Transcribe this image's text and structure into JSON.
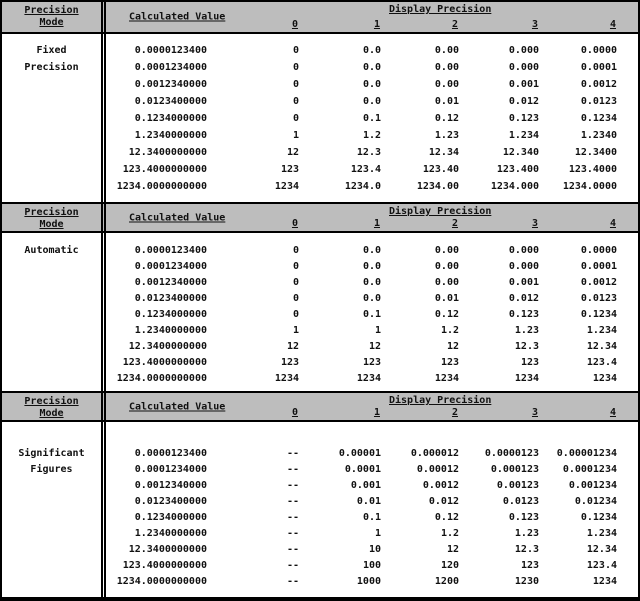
{
  "colors": {
    "header_bg": "#bdbdbd",
    "border": "#000000",
    "body_bg": "#ffffff",
    "text": "#111111"
  },
  "header": {
    "mode_col": {
      "line1": "Precision",
      "line2": "Mode"
    },
    "calc_col": "Calculated Value",
    "display_group": "Display Precision",
    "levels": [
      "0",
      "1",
      "2",
      "3",
      "4"
    ]
  },
  "sections": [
    {
      "id": "fixed-precision",
      "mode_line1": "Fixed",
      "mode_line2": "Precision",
      "rows": [
        [
          "0.0000123400",
          "0",
          "0.0",
          "0.00",
          "0.000",
          "0.0000"
        ],
        [
          "0.0001234000",
          "0",
          "0.0",
          "0.00",
          "0.000",
          "0.0001"
        ],
        [
          "0.0012340000",
          "0",
          "0.0",
          "0.00",
          "0.001",
          "0.0012"
        ],
        [
          "0.0123400000",
          "0",
          "0.0",
          "0.01",
          "0.012",
          "0.0123"
        ],
        [
          "0.1234000000",
          "0",
          "0.1",
          "0.12",
          "0.123",
          "0.1234"
        ],
        [
          "1.2340000000",
          "1",
          "1.2",
          "1.23",
          "1.234",
          "1.2340"
        ],
        [
          "12.3400000000",
          "12",
          "12.3",
          "12.34",
          "12.340",
          "12.3400"
        ],
        [
          "123.4000000000",
          "123",
          "123.4",
          "123.40",
          "123.400",
          "123.4000"
        ],
        [
          "1234.0000000000",
          "1234",
          "1234.0",
          "1234.00",
          "1234.000",
          "1234.0000"
        ]
      ]
    },
    {
      "id": "automatic",
      "mode_line1": "Automatic",
      "mode_line2": "",
      "rows": [
        [
          "0.0000123400",
          "0",
          "0.0",
          "0.00",
          "0.000",
          "0.0000"
        ],
        [
          "0.0001234000",
          "0",
          "0.0",
          "0.00",
          "0.000",
          "0.0001"
        ],
        [
          "0.0012340000",
          "0",
          "0.0",
          "0.00",
          "0.001",
          "0.0012"
        ],
        [
          "0.0123400000",
          "0",
          "0.0",
          "0.01",
          "0.012",
          "0.0123"
        ],
        [
          "0.1234000000",
          "0",
          "0.1",
          "0.12",
          "0.123",
          "0.1234"
        ],
        [
          "1.2340000000",
          "1",
          "1",
          "1.2",
          "1.23",
          "1.234"
        ],
        [
          "12.3400000000",
          "12",
          "12",
          "12",
          "12.3",
          "12.34"
        ],
        [
          "123.4000000000",
          "123",
          "123",
          "123",
          "123",
          "123.4"
        ],
        [
          "1234.0000000000",
          "1234",
          "1234",
          "1234",
          "1234",
          "1234"
        ]
      ]
    },
    {
      "id": "significant-figures",
      "mode_line1": "Significant",
      "mode_line2": "Figures",
      "rows": [
        [
          "0.0000123400",
          "--",
          "0.00001",
          "0.000012",
          "0.0000123",
          "0.00001234"
        ],
        [
          "0.0001234000",
          "--",
          "0.0001",
          "0.00012",
          "0.000123",
          "0.0001234"
        ],
        [
          "0.0012340000",
          "--",
          "0.001",
          "0.0012",
          "0.00123",
          "0.001234"
        ],
        [
          "0.0123400000",
          "--",
          "0.01",
          "0.012",
          "0.0123",
          "0.01234"
        ],
        [
          "0.1234000000",
          "--",
          "0.1",
          "0.12",
          "0.123",
          "0.1234"
        ],
        [
          "1.2340000000",
          "--",
          "1",
          "1.2",
          "1.23",
          "1.234"
        ],
        [
          "12.3400000000",
          "--",
          "10",
          "12",
          "12.3",
          "12.34"
        ],
        [
          "123.4000000000",
          "--",
          "100",
          "120",
          "123",
          "123.4"
        ],
        [
          "1234.0000000000",
          "--",
          "1000",
          "1200",
          "1230",
          "1234"
        ]
      ]
    }
  ]
}
